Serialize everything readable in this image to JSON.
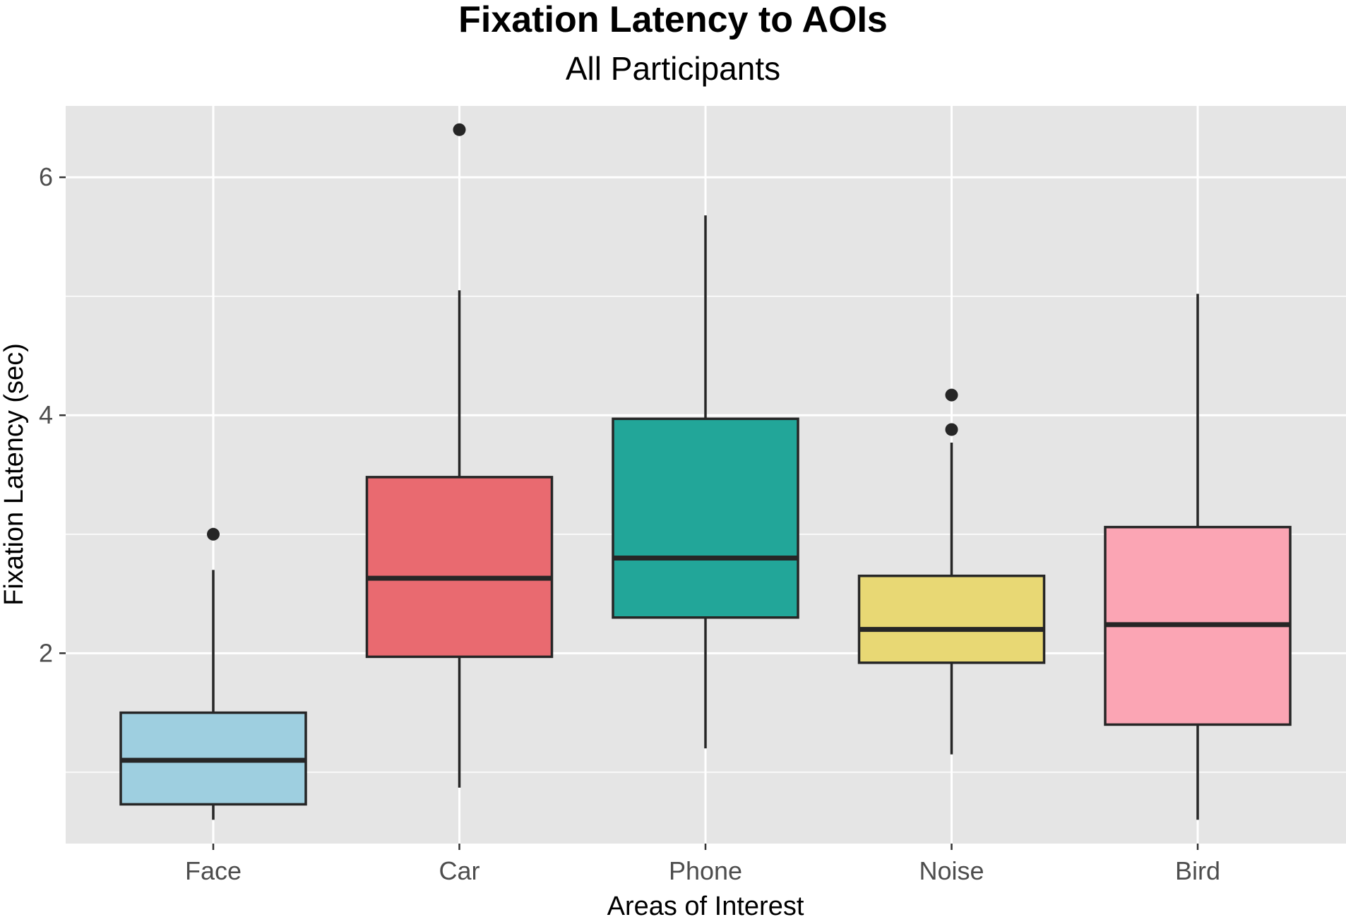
{
  "chart_data": {
    "type": "boxplot",
    "title": "Fixation Latency to AOIs",
    "subtitle": "All Participants",
    "xlabel": "Areas of Interest",
    "ylabel": "Fixation Latency (sec)",
    "ylim": [
      0.4,
      6.6
    ],
    "yticks": [
      2,
      4,
      6
    ],
    "grid": true,
    "categories": [
      "Face",
      "Car",
      "Phone",
      "Noise",
      "Bird"
    ],
    "boxes": [
      {
        "category": "Face",
        "whisker_low": 0.6,
        "q1": 0.73,
        "median": 1.1,
        "q3": 1.5,
        "whisker_high": 2.7,
        "outliers": [
          3.0
        ],
        "color": "#9ecfe0"
      },
      {
        "category": "Car",
        "whisker_low": 0.87,
        "q1": 1.97,
        "median": 2.63,
        "q3": 3.48,
        "whisker_high": 5.05,
        "outliers": [
          6.4
        ],
        "color": "#e96a70"
      },
      {
        "category": "Phone",
        "whisker_low": 1.2,
        "q1": 2.3,
        "median": 2.8,
        "q3": 3.97,
        "whisker_high": 5.68,
        "outliers": [],
        "color": "#22a699"
      },
      {
        "category": "Noise",
        "whisker_low": 1.15,
        "q1": 1.92,
        "median": 2.2,
        "q3": 2.65,
        "whisker_high": 3.77,
        "outliers": [
          3.88,
          4.17
        ],
        "color": "#e8d874"
      },
      {
        "category": "Bird",
        "whisker_low": 0.6,
        "q1": 1.4,
        "median": 2.24,
        "q3": 3.06,
        "whisker_high": 5.02,
        "outliers": [],
        "color": "#fba5b4"
      }
    ],
    "colors": {
      "panel_bg": "#e5e5e5",
      "grid": "#ffffff",
      "line": "#262626",
      "tick_text": "#4d4d4d"
    }
  }
}
